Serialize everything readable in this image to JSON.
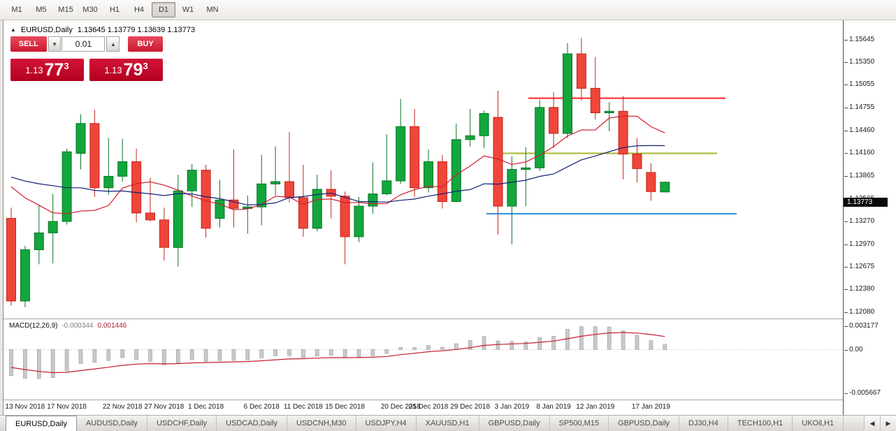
{
  "toolbar": {
    "timeframes": [
      {
        "label": "M1",
        "active": false
      },
      {
        "label": "M5",
        "active": false
      },
      {
        "label": "M15",
        "active": false
      },
      {
        "label": "M30",
        "active": false
      },
      {
        "label": "H1",
        "active": false
      },
      {
        "label": "H4",
        "active": false
      },
      {
        "label": "D1",
        "active": true
      },
      {
        "label": "W1",
        "active": false
      },
      {
        "label": "MN",
        "active": false
      }
    ]
  },
  "chart": {
    "symbol_title": "EURUSD,Daily",
    "ohlc_text": "1.13645 1.13779 1.13639 1.13773",
    "current_price": "1.13773",
    "trade_panel": {
      "sell_label": "SELL",
      "buy_label": "BUY",
      "volume": "0.01",
      "sell_price": {
        "prefix": "1.13",
        "big": "77",
        "sup": "3"
      },
      "buy_price": {
        "prefix": "1.13",
        "big": "79",
        "sup": "3"
      }
    },
    "price_axis_labels": [
      "1.15645",
      "1.15350",
      "1.15055",
      "1.14755",
      "1.14460",
      "1.14160",
      "1.13865",
      "1.13565",
      "1.13270",
      "1.12970",
      "1.12675",
      "1.12380",
      "1.12080"
    ]
  },
  "macd": {
    "name": "MACD(12,26,9)",
    "value_main": "-0.000344",
    "value_signal": "0.001446",
    "axis_labels": [
      "0.003177",
      "0.00",
      "-0.005667"
    ]
  },
  "tabs": {
    "items": [
      {
        "label": "EURUSD,Daily",
        "active": true
      },
      {
        "label": "AUDUSD,Daily",
        "active": false
      },
      {
        "label": "USDCHF,Daily",
        "active": false
      },
      {
        "label": "USDCAD,Daily",
        "active": false
      },
      {
        "label": "USDCNH,M30",
        "active": false
      },
      {
        "label": "USDJPY,H4",
        "active": false
      },
      {
        "label": "XAUUSD,H1",
        "active": false
      },
      {
        "label": "GBPUSD,Daily",
        "active": false
      },
      {
        "label": "SP500,M15",
        "active": false
      },
      {
        "label": "GBPUSD,Daily",
        "active": false
      },
      {
        "label": "DJ30,H4",
        "active": false
      },
      {
        "label": "TECH100,H1",
        "active": false
      },
      {
        "label": "UKOil,H1",
        "active": false
      }
    ],
    "scroll_left": "◀",
    "scroll_right": "▶"
  },
  "chart_data": {
    "type": "candlestick",
    "symbol": "EURUSD",
    "timeframe": "Daily",
    "ylim": [
      1.12,
      1.1588
    ],
    "macd_ylim": [
      -0.0066,
      0.004
    ],
    "candles_columns": [
      "open",
      "high",
      "low",
      "close"
    ],
    "candles_ohlc": [
      [
        1.133,
        1.1344,
        1.1216,
        1.1222
      ],
      [
        1.1222,
        1.1294,
        1.1214,
        1.1289
      ],
      [
        1.1289,
        1.1348,
        1.127,
        1.1311
      ],
      [
        1.1311,
        1.1362,
        1.1271,
        1.1326
      ],
      [
        1.1326,
        1.1421,
        1.1322,
        1.1417
      ],
      [
        1.1415,
        1.1466,
        1.1394,
        1.1454
      ],
      [
        1.1454,
        1.1472,
        1.1358,
        1.137
      ],
      [
        1.137,
        1.1435,
        1.1361,
        1.1385
      ],
      [
        1.1385,
        1.1434,
        1.1378,
        1.1404
      ],
      [
        1.1404,
        1.1421,
        1.1325,
        1.1337
      ],
      [
        1.1337,
        1.1383,
        1.1326,
        1.1328
      ],
      [
        1.1328,
        1.1344,
        1.1275,
        1.1292
      ],
      [
        1.1292,
        1.1387,
        1.1267,
        1.1366
      ],
      [
        1.1366,
        1.1401,
        1.1345,
        1.1393
      ],
      [
        1.1393,
        1.14,
        1.1305,
        1.1317
      ],
      [
        1.133,
        1.138,
        1.1318,
        1.1354
      ],
      [
        1.1354,
        1.142,
        1.1318,
        1.1343
      ],
      [
        1.1343,
        1.136,
        1.131,
        1.1345
      ],
      [
        1.1345,
        1.1413,
        1.1321,
        1.1375
      ],
      [
        1.1375,
        1.1424,
        1.136,
        1.1378
      ],
      [
        1.1378,
        1.1443,
        1.1351,
        1.1357
      ],
      [
        1.1357,
        1.14,
        1.1306,
        1.1317
      ],
      [
        1.1317,
        1.1387,
        1.1313,
        1.1368
      ],
      [
        1.1368,
        1.1393,
        1.133,
        1.1359
      ],
      [
        1.1359,
        1.1365,
        1.127,
        1.1306
      ],
      [
        1.1306,
        1.1358,
        1.1299,
        1.1346
      ],
      [
        1.1346,
        1.1403,
        1.1336,
        1.1362
      ],
      [
        1.1362,
        1.144,
        1.136,
        1.1379
      ],
      [
        1.1379,
        1.1486,
        1.1375,
        1.145
      ],
      [
        1.145,
        1.1473,
        1.1358,
        1.137
      ],
      [
        1.137,
        1.142,
        1.1364,
        1.1404
      ],
      [
        1.1404,
        1.1413,
        1.1343,
        1.1352
      ],
      [
        1.1352,
        1.1454,
        1.1351,
        1.1433
      ],
      [
        1.1433,
        1.1473,
        1.1424,
        1.1438
      ],
      [
        1.1438,
        1.1471,
        1.1422,
        1.1467
      ],
      [
        1.1462,
        1.1497,
        1.1309,
        1.1346
      ],
      [
        1.1346,
        1.1411,
        1.1296,
        1.1394
      ],
      [
        1.1394,
        1.1423,
        1.1346,
        1.1396
      ],
      [
        1.1396,
        1.1485,
        1.1392,
        1.1475
      ],
      [
        1.1475,
        1.1495,
        1.1422,
        1.1441
      ],
      [
        1.1441,
        1.1559,
        1.1435,
        1.1545
      ],
      [
        1.1545,
        1.1566,
        1.1484,
        1.15
      ],
      [
        1.15,
        1.1541,
        1.1459,
        1.1468
      ],
      [
        1.1468,
        1.1482,
        1.1444,
        1.147
      ],
      [
        1.147,
        1.149,
        1.1381,
        1.1414
      ],
      [
        1.1414,
        1.1435,
        1.1377,
        1.1395
      ],
      [
        1.139,
        1.1402,
        1.1353,
        1.1365
      ],
      [
        1.13645,
        1.13779,
        1.13639,
        1.13773
      ]
    ],
    "date_labels": [
      {
        "text": "13 Nov 2018",
        "index": 1
      },
      {
        "text": "17 Nov 2018",
        "index": 4
      },
      {
        "text": "22 Nov 2018",
        "index": 8
      },
      {
        "text": "27 Nov 2018",
        "index": 11
      },
      {
        "text": "1 Dec 2018",
        "index": 14
      },
      {
        "text": "6 Dec 2018",
        "index": 18
      },
      {
        "text": "11 Dec 2018",
        "index": 21
      },
      {
        "text": "15 Dec 2018",
        "index": 24
      },
      {
        "text": "20 Dec 2018",
        "index": 28
      },
      {
        "text": "25 Dec 2018",
        "index": 30
      },
      {
        "text": "29 Dec 2018",
        "index": 33
      },
      {
        "text": "3 Jan 2019",
        "index": 36
      },
      {
        "text": "8 Jan 2019",
        "index": 39
      },
      {
        "text": "12 Jan 2019",
        "index": 42
      },
      {
        "text": "17 Jan 2019",
        "index": 46
      }
    ],
    "hlines": [
      {
        "price": 1.1487,
        "x1": 750,
        "x2": 1032,
        "color": "#ff2020"
      },
      {
        "price": 1.1415,
        "x1": 712,
        "x2": 1020,
        "color": "#a9b429"
      },
      {
        "price": 1.1336,
        "x1": 690,
        "x2": 1048,
        "color": "#2f8fdf"
      }
    ],
    "ma": [
      {
        "period": 8,
        "color": "#cf1f2f"
      },
      {
        "period": 20,
        "color": "#101f78"
      }
    ],
    "macd_params": {
      "fast": 12,
      "slow": 26,
      "signal": 9
    },
    "indicator_warmup_closes": [
      1.147,
      1.1456,
      1.1438,
      1.141,
      1.1395,
      1.1378,
      1.136,
      1.134,
      1.1312,
      1.1405,
      1.1388,
      1.1405,
      1.1426,
      1.1427,
      1.1362,
      1.1335
    ],
    "colors": {
      "up": "#12a63c",
      "up_border": "#0a7528",
      "down": "#f0453a",
      "down_border": "#c1271d",
      "hist": "#c9c9c9",
      "hist_border": "#9a9a9a",
      "signal": "#c51f2f"
    }
  }
}
